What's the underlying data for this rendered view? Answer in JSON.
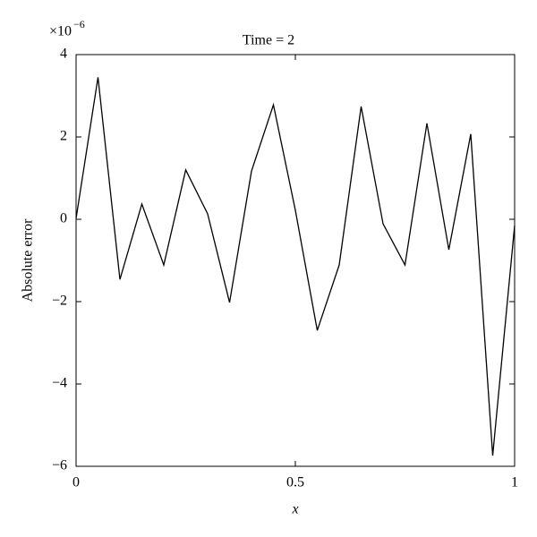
{
  "chart_data": {
    "type": "line",
    "title": "Time = 2",
    "xlabel": "x",
    "ylabel": "Absolute error",
    "y_scale_base": "×10",
    "y_scale_exponent": "−6",
    "x": [
      0,
      0.05,
      0.1,
      0.15,
      0.2,
      0.25,
      0.3,
      0.35,
      0.4,
      0.45,
      0.5,
      0.55,
      0.6,
      0.65,
      0.7,
      0.75,
      0.8,
      0.85,
      0.9,
      0.95,
      1
    ],
    "series": [
      {
        "color": "#000000",
        "values": [
          0.02,
          3.45,
          -1.46,
          0.37,
          -1.11,
          1.2,
          0.13,
          -2.02,
          1.17,
          2.78,
          0.22,
          -2.7,
          -1.11,
          2.74,
          -0.11,
          -1.11,
          2.33,
          -0.74,
          2.07,
          -5.74,
          -0.15
        ]
      }
    ],
    "xlim": [
      0,
      1
    ],
    "xticks": [
      0,
      0.5,
      1
    ],
    "ylim": [
      -6,
      4
    ],
    "yticks": [
      {
        "value": -6,
        "label": "−6"
      },
      {
        "value": -4,
        "label": "−4"
      },
      {
        "value": -2,
        "label": "−2"
      },
      0,
      2,
      4
    ],
    "grid": false
  }
}
